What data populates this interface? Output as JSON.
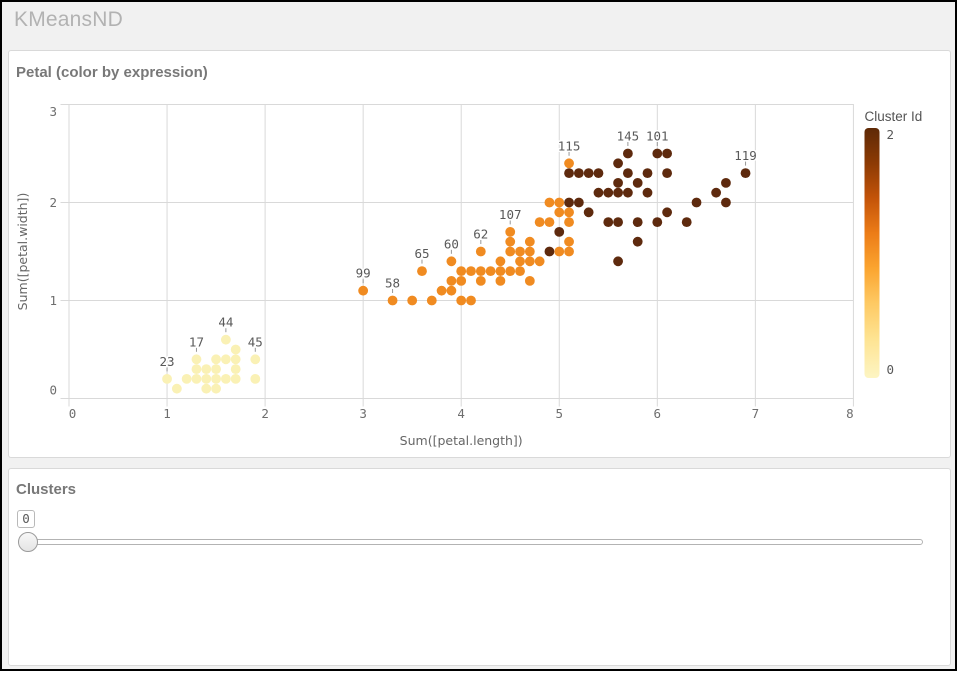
{
  "window": {
    "title": "KMeansND"
  },
  "chart_panel": {
    "title": "Petal (color by expression)"
  },
  "slider_panel": {
    "title": "Clusters",
    "value": "0"
  },
  "colors": {
    "clusters": [
      "#FAF1B5",
      "#F08B21",
      "#5E2A0E"
    ],
    "legend_gradient": [
      [
        "0%",
        "#5E2906"
      ],
      [
        "14%",
        "#8C3A04"
      ],
      [
        "28%",
        "#C35309"
      ],
      [
        "42%",
        "#EC7C17"
      ],
      [
        "56%",
        "#FBA42F"
      ],
      [
        "70%",
        "#FEC963"
      ],
      [
        "84%",
        "#FEE391"
      ],
      [
        "100%",
        "#FDF5C3"
      ]
    ]
  },
  "chart_data": {
    "type": "scatter",
    "title": "Petal (color by expression)",
    "xlabel": "Sum([petal.length])",
    "ylabel": "Sum([petal.width])",
    "xlim": [
      0,
      8
    ],
    "ylim": [
      0,
      3
    ],
    "x_ticks": [
      "0",
      "1",
      "2",
      "3",
      "4",
      "5",
      "6",
      "7",
      "8"
    ],
    "y_ticks": [
      "0",
      "1",
      "2",
      "3"
    ],
    "grid": true,
    "legend": {
      "title": "Cluster Id",
      "max_label": "2",
      "min_label": "0"
    },
    "points": [
      {
        "x": 1.0,
        "y": 0.2,
        "c": 0
      },
      {
        "x": 1.1,
        "y": 0.1,
        "c": 0
      },
      {
        "x": 1.2,
        "y": 0.2,
        "c": 0
      },
      {
        "x": 1.3,
        "y": 0.2,
        "c": 0
      },
      {
        "x": 1.3,
        "y": 0.3,
        "c": 0
      },
      {
        "x": 1.3,
        "y": 0.4,
        "c": 0
      },
      {
        "x": 1.4,
        "y": 0.1,
        "c": 0
      },
      {
        "x": 1.4,
        "y": 0.2,
        "c": 0
      },
      {
        "x": 1.4,
        "y": 0.3,
        "c": 0
      },
      {
        "x": 1.5,
        "y": 0.1,
        "c": 0
      },
      {
        "x": 1.5,
        "y": 0.2,
        "c": 0
      },
      {
        "x": 1.5,
        "y": 0.3,
        "c": 0
      },
      {
        "x": 1.5,
        "y": 0.4,
        "c": 0
      },
      {
        "x": 1.6,
        "y": 0.2,
        "c": 0
      },
      {
        "x": 1.6,
        "y": 0.4,
        "c": 0
      },
      {
        "x": 1.6,
        "y": 0.6,
        "c": 0
      },
      {
        "x": 1.7,
        "y": 0.2,
        "c": 0
      },
      {
        "x": 1.7,
        "y": 0.3,
        "c": 0
      },
      {
        "x": 1.7,
        "y": 0.4,
        "c": 0
      },
      {
        "x": 1.7,
        "y": 0.5,
        "c": 0
      },
      {
        "x": 1.9,
        "y": 0.2,
        "c": 0
      },
      {
        "x": 1.9,
        "y": 0.4,
        "c": 0
      },
      {
        "x": 3.0,
        "y": 1.1,
        "c": 1
      },
      {
        "x": 3.3,
        "y": 1.0,
        "c": 1
      },
      {
        "x": 3.5,
        "y": 1.0,
        "c": 1
      },
      {
        "x": 3.6,
        "y": 1.3,
        "c": 1
      },
      {
        "x": 3.7,
        "y": 1.0,
        "c": 1
      },
      {
        "x": 3.8,
        "y": 1.1,
        "c": 1
      },
      {
        "x": 3.9,
        "y": 1.1,
        "c": 1
      },
      {
        "x": 3.9,
        "y": 1.2,
        "c": 1
      },
      {
        "x": 3.9,
        "y": 1.4,
        "c": 1
      },
      {
        "x": 4.0,
        "y": 1.0,
        "c": 1
      },
      {
        "x": 4.0,
        "y": 1.2,
        "c": 1
      },
      {
        "x": 4.0,
        "y": 1.3,
        "c": 1
      },
      {
        "x": 4.1,
        "y": 1.0,
        "c": 1
      },
      {
        "x": 4.1,
        "y": 1.3,
        "c": 1
      },
      {
        "x": 4.2,
        "y": 1.2,
        "c": 1
      },
      {
        "x": 4.2,
        "y": 1.3,
        "c": 1
      },
      {
        "x": 4.2,
        "y": 1.5,
        "c": 1
      },
      {
        "x": 4.3,
        "y": 1.3,
        "c": 1
      },
      {
        "x": 4.4,
        "y": 1.2,
        "c": 1
      },
      {
        "x": 4.4,
        "y": 1.3,
        "c": 1
      },
      {
        "x": 4.4,
        "y": 1.4,
        "c": 1
      },
      {
        "x": 4.5,
        "y": 1.3,
        "c": 1
      },
      {
        "x": 4.5,
        "y": 1.5,
        "c": 1
      },
      {
        "x": 4.5,
        "y": 1.6,
        "c": 1
      },
      {
        "x": 4.5,
        "y": 1.7,
        "c": 1
      },
      {
        "x": 4.6,
        "y": 1.3,
        "c": 1
      },
      {
        "x": 4.6,
        "y": 1.4,
        "c": 1
      },
      {
        "x": 4.6,
        "y": 1.5,
        "c": 1
      },
      {
        "x": 4.7,
        "y": 1.2,
        "c": 1
      },
      {
        "x": 4.7,
        "y": 1.4,
        "c": 1
      },
      {
        "x": 4.7,
        "y": 1.5,
        "c": 1
      },
      {
        "x": 4.7,
        "y": 1.6,
        "c": 1
      },
      {
        "x": 4.8,
        "y": 1.4,
        "c": 1
      },
      {
        "x": 4.8,
        "y": 1.8,
        "c": 1
      },
      {
        "x": 4.9,
        "y": 1.5,
        "c": 2
      },
      {
        "x": 4.9,
        "y": 1.8,
        "c": 1
      },
      {
        "x": 4.9,
        "y": 2.0,
        "c": 1
      },
      {
        "x": 5.0,
        "y": 1.5,
        "c": 1
      },
      {
        "x": 5.0,
        "y": 1.7,
        "c": 2
      },
      {
        "x": 5.0,
        "y": 1.9,
        "c": 1
      },
      {
        "x": 5.0,
        "y": 2.0,
        "c": 1
      },
      {
        "x": 5.1,
        "y": 1.5,
        "c": 1
      },
      {
        "x": 5.1,
        "y": 1.6,
        "c": 1
      },
      {
        "x": 5.1,
        "y": 1.8,
        "c": 1
      },
      {
        "x": 5.1,
        "y": 1.9,
        "c": 1
      },
      {
        "x": 5.1,
        "y": 2.0,
        "c": 2
      },
      {
        "x": 5.1,
        "y": 2.3,
        "c": 2
      },
      {
        "x": 5.1,
        "y": 2.4,
        "c": 1
      },
      {
        "x": 5.2,
        "y": 2.0,
        "c": 2
      },
      {
        "x": 5.2,
        "y": 2.3,
        "c": 2
      },
      {
        "x": 5.3,
        "y": 1.9,
        "c": 2
      },
      {
        "x": 5.3,
        "y": 2.3,
        "c": 2
      },
      {
        "x": 5.4,
        "y": 2.1,
        "c": 2
      },
      {
        "x": 5.4,
        "y": 2.3,
        "c": 2
      },
      {
        "x": 5.5,
        "y": 1.8,
        "c": 2
      },
      {
        "x": 5.5,
        "y": 2.1,
        "c": 2
      },
      {
        "x": 5.6,
        "y": 1.4,
        "c": 2
      },
      {
        "x": 5.6,
        "y": 1.8,
        "c": 2
      },
      {
        "x": 5.6,
        "y": 2.1,
        "c": 2
      },
      {
        "x": 5.6,
        "y": 2.2,
        "c": 2
      },
      {
        "x": 5.6,
        "y": 2.4,
        "c": 2
      },
      {
        "x": 5.7,
        "y": 2.1,
        "c": 2
      },
      {
        "x": 5.7,
        "y": 2.3,
        "c": 2
      },
      {
        "x": 5.7,
        "y": 2.5,
        "c": 2
      },
      {
        "x": 5.8,
        "y": 1.6,
        "c": 2
      },
      {
        "x": 5.8,
        "y": 1.8,
        "c": 2
      },
      {
        "x": 5.8,
        "y": 2.2,
        "c": 2
      },
      {
        "x": 5.9,
        "y": 2.1,
        "c": 2
      },
      {
        "x": 5.9,
        "y": 2.3,
        "c": 2
      },
      {
        "x": 6.0,
        "y": 1.8,
        "c": 2
      },
      {
        "x": 6.0,
        "y": 2.5,
        "c": 2
      },
      {
        "x": 6.1,
        "y": 1.9,
        "c": 2
      },
      {
        "x": 6.1,
        "y": 2.3,
        "c": 2
      },
      {
        "x": 6.1,
        "y": 2.5,
        "c": 2
      },
      {
        "x": 6.3,
        "y": 1.8,
        "c": 2
      },
      {
        "x": 6.4,
        "y": 2.0,
        "c": 2
      },
      {
        "x": 6.6,
        "y": 2.1,
        "c": 2
      },
      {
        "x": 6.7,
        "y": 2.0,
        "c": 2
      },
      {
        "x": 6.7,
        "y": 2.2,
        "c": 2
      },
      {
        "x": 6.9,
        "y": 2.3,
        "c": 2
      }
    ],
    "point_labels": [
      {
        "text": "23",
        "x": 1.0,
        "y": 0.2
      },
      {
        "text": "17",
        "x": 1.3,
        "y": 0.4
      },
      {
        "text": "44",
        "x": 1.6,
        "y": 0.6
      },
      {
        "text": "45",
        "x": 1.9,
        "y": 0.4
      },
      {
        "text": "58",
        "x": 3.3,
        "y": 1.0
      },
      {
        "text": "60",
        "x": 3.9,
        "y": 1.4
      },
      {
        "text": "62",
        "x": 4.2,
        "y": 1.5
      },
      {
        "text": "65",
        "x": 3.6,
        "y": 1.3
      },
      {
        "text": "99",
        "x": 3.0,
        "y": 1.1
      },
      {
        "text": "101",
        "x": 6.0,
        "y": 2.5
      },
      {
        "text": "107",
        "x": 4.5,
        "y": 1.7
      },
      {
        "text": "115",
        "x": 5.1,
        "y": 2.4
      },
      {
        "text": "119",
        "x": 6.9,
        "y": 2.3
      },
      {
        "text": "145",
        "x": 5.7,
        "y": 2.5
      }
    ]
  }
}
